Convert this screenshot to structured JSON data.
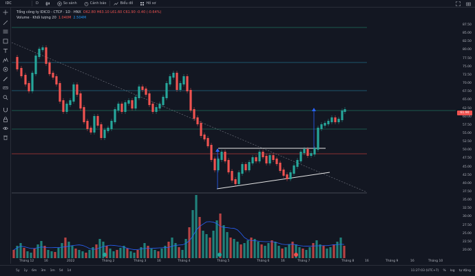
{
  "toolbar": {
    "symbol": "IDC",
    "compare_label": "So sánh",
    "alert_label": "Cảnh báo",
    "indicator_label": "Biểu đồ",
    "more_label": "Hồ sơ"
  },
  "legend": {
    "title": "Tổng công ty IDICO - CTCP · 1D · HNX",
    "ohlc": "O62.80 H63.10 L61.60 C61.90 -0.40 (-0.64%)",
    "volume_label": "Volume · Khối lượng 20",
    "volume_value1": "1.040M",
    "volume_value2": "2.504M"
  },
  "price_axis": {
    "labels": [
      "87.50",
      "85.00",
      "82.50",
      "80.00",
      "77.50",
      "75.00",
      "72.50",
      "70.00",
      "67.50",
      "65.00",
      "62.50",
      "60.00",
      "57.50",
      "55.00",
      "52.50",
      "50.00",
      "47.50",
      "45.00",
      "42.50",
      "40.00",
      "37.50",
      "35.00",
      "32.50",
      "30.00",
      "27.50",
      "25.00",
      "22.50",
      "20.00"
    ],
    "current_price": "61.90",
    "current_price_color": "#ef5350"
  },
  "time_axis": {
    "labels": [
      "Tháng 12",
      "16",
      "2022",
      "Tháng 2",
      "Tháng 3",
      "16",
      "Tháng 4",
      "Tháng 5",
      "Tháng 6",
      "16",
      "Tháng 7",
      "Tháng 8",
      "16",
      "Tháng 9",
      "16",
      "Tháng 10"
    ]
  },
  "bottom_bar": {
    "ranges": [
      "5y",
      "1y",
      "6m",
      "3m",
      "1m",
      "5d",
      "1d"
    ],
    "time": "11:27:03 (UTC+7)",
    "pct": "%",
    "log": "log",
    "auto": "tự động"
  },
  "colors": {
    "up": "#26a69a",
    "down": "#ef5350",
    "background": "#131722",
    "volume_ma": "#2962ff",
    "line_green": "#1f6f5c",
    "line_teal": "#226a86",
    "line_red": "#b73a38",
    "line_white": "#e8e8e8",
    "arrow_blue": "#2962ff"
  },
  "icons": [
    "crosshair-icon",
    "trendline-icon",
    "fib-icon",
    "brush-icon",
    "text-icon",
    "pattern-icon",
    "prediction-icon",
    "shape-icon",
    "ruler-icon",
    "zoom-icon",
    "magnet-icon",
    "lock-icon",
    "eye-icon",
    "trash-icon"
  ]
}
